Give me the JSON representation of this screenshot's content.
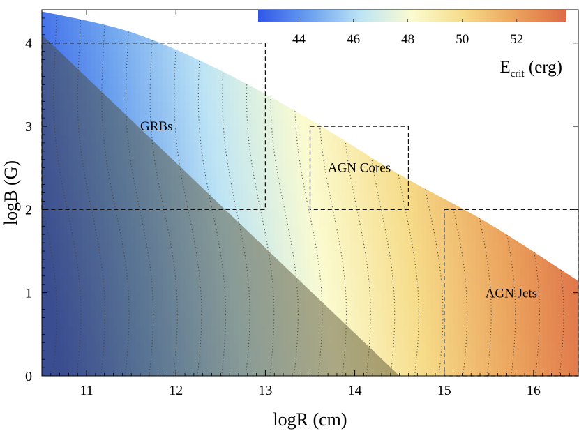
{
  "chart_data": {
    "type": "heatmap",
    "xlabel": "logR (cm)",
    "ylabel": "logB (G)",
    "xlim": [
      10.5,
      16.5
    ],
    "ylim": [
      0,
      4.4
    ],
    "xticks": [
      "11",
      "12",
      "13",
      "14",
      "15",
      "16"
    ],
    "yticks": [
      "0",
      "1",
      "2",
      "3",
      "4"
    ],
    "grid": false,
    "colorbar": {
      "title_main": "E",
      "title_sub": "crit",
      "title_unit": " (erg)",
      "range": [
        42.5,
        53.8
      ],
      "ticks": [
        "44",
        "46",
        "48",
        "50",
        "52"
      ],
      "placement": "top-right",
      "colors": [
        "#2f57e8",
        "#6aa0ee",
        "#bde4f5",
        "#fbfbd0",
        "#f6dc8a",
        "#eba45e",
        "#dd6b45"
      ]
    },
    "boundary_curve": [
      {
        "x": 10.5,
        "y": 4.38
      },
      {
        "x": 11.5,
        "y": 4.13
      },
      {
        "x": 12.5,
        "y": 3.67
      },
      {
        "x": 13.5,
        "y": 3.08
      },
      {
        "x": 14.5,
        "y": 2.42
      },
      {
        "x": 15.5,
        "y": 1.83
      },
      {
        "x": 16.5,
        "y": 1.14
      }
    ],
    "shaded_region": {
      "color": "#4a4226",
      "vertices": [
        {
          "x": 10.5,
          "y": 4.1
        },
        {
          "x": 14.5,
          "y": 0
        },
        {
          "x": 10.5,
          "y": 0
        }
      ]
    },
    "contour_style": "dotted",
    "regions": [
      {
        "name": "GRBs",
        "x": [
          10.5,
          13.0
        ],
        "y": [
          2,
          4
        ]
      },
      {
        "name": "AGN Cores",
        "x": [
          13.5,
          14.6
        ],
        "y": [
          2,
          3
        ]
      },
      {
        "name": "AGN Jets",
        "x": [
          15.0,
          16.5
        ],
        "y": [
          0,
          2
        ]
      }
    ]
  }
}
